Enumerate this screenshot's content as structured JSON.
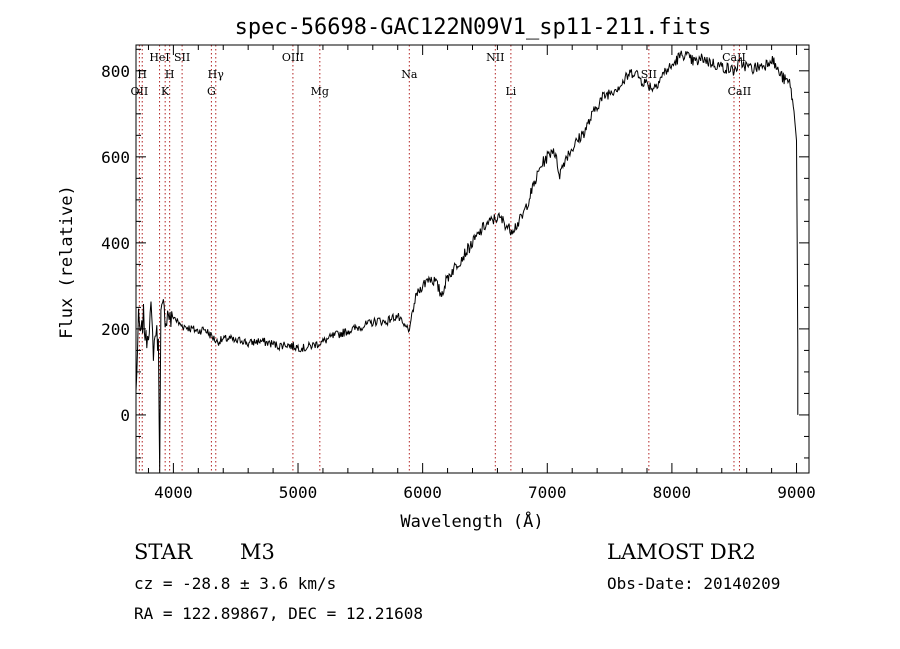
{
  "chart_data": {
    "type": "line",
    "title": "spec-56698-GAC122N09V1_sp11-211.fits",
    "xlabel": "Wavelength (Å)",
    "ylabel": "Flux (relative)",
    "xlim": [
      3700,
      9100
    ],
    "ylim": [
      -135,
      860
    ],
    "xticks": [
      4000,
      5000,
      6000,
      7000,
      8000,
      9000
    ],
    "yticks": [
      0,
      200,
      400,
      600,
      800
    ],
    "grid": false,
    "series": [
      {
        "values_x": [
          3700,
          3720,
          3740,
          3760,
          3780,
          3800,
          3820,
          3840,
          3860,
          3880,
          3890,
          3900,
          3920,
          3940,
          3960,
          3980,
          4000,
          4050,
          4100,
          4150,
          4200,
          4250,
          4300,
          4350,
          4400,
          4450,
          4500,
          4550,
          4600,
          4650,
          4700,
          4750,
          4800,
          4850,
          4900,
          4950,
          5000,
          5050,
          5100,
          5150,
          5200,
          5250,
          5300,
          5350,
          5400,
          5450,
          5500,
          5550,
          5600,
          5650,
          5700,
          5750,
          5800,
          5850,
          5900,
          5920,
          5950,
          6000,
          6050,
          6100,
          6150,
          6200,
          6250,
          6300,
          6350,
          6400,
          6450,
          6500,
          6550,
          6600,
          6650,
          6700,
          6750,
          6800,
          6850,
          6900,
          6950,
          7000,
          7050,
          7100,
          7150,
          7200,
          7250,
          7300,
          7350,
          7400,
          7450,
          7500,
          7550,
          7600,
          7650,
          7700,
          7750,
          7800,
          7850,
          7900,
          7950,
          8000,
          8050,
          8100,
          8150,
          8200,
          8250,
          8300,
          8350,
          8400,
          8450,
          8500,
          8550,
          8600,
          8650,
          8700,
          8750,
          8800,
          8850,
          8900,
          8950,
          8980,
          9000,
          9010
        ],
        "values_y": [
          50,
          220,
          180,
          230,
          170,
          200,
          240,
          150,
          200,
          160,
          -130,
          230,
          250,
          220,
          240,
          215,
          230,
          210,
          205,
          200,
          195,
          200,
          185,
          170,
          175,
          178,
          170,
          175,
          165,
          170,
          172,
          168,
          165,
          160,
          165,
          160,
          158,
          155,
          160,
          165,
          170,
          178,
          185,
          190,
          195,
          200,
          205,
          210,
          215,
          220,
          215,
          225,
          230,
          205,
          200,
          240,
          280,
          300,
          320,
          310,
          280,
          320,
          340,
          360,
          380,
          400,
          420,
          440,
          450,
          460,
          450,
          430,
          440,
          460,
          500,
          540,
          580,
          600,
          620,
          560,
          600,
          620,
          640,
          660,
          690,
          720,
          740,
          750,
          760,
          770,
          790,
          800,
          780,
          770,
          760,
          780,
          800,
          810,
          830,
          840,
          825,
          820,
          830,
          820,
          815,
          810,
          805,
          800,
          820,
          810,
          805,
          810,
          815,
          830,
          800,
          780,
          770,
          700,
          650,
          150
        ]
      }
    ],
    "line_markers": [
      {
        "x": 3727,
        "label": "OII",
        "row": "lower"
      },
      {
        "x": 3750,
        "label": "H",
        "row": "upper"
      },
      {
        "x": 3889,
        "label": "HeI",
        "row": "top"
      },
      {
        "x": 3934,
        "label": "K",
        "row": "lower"
      },
      {
        "x": 3970,
        "label": "H",
        "row": "upper"
      },
      {
        "x": 4070,
        "label": "SII",
        "row": "top"
      },
      {
        "x": 4305,
        "label": "G",
        "row": "lower"
      },
      {
        "x": 4340,
        "label": "Hγ",
        "row": "upper"
      },
      {
        "x": 4959,
        "label": "OIII",
        "row": "top"
      },
      {
        "x": 5175,
        "label": "Mg",
        "row": "lower"
      },
      {
        "x": 5893,
        "label": "Na",
        "row": "upper"
      },
      {
        "x": 6583,
        "label": "NII",
        "row": "top"
      },
      {
        "x": 6708,
        "label": "Li",
        "row": "lower"
      },
      {
        "x": 7815,
        "label": "SII",
        "row": "upper"
      },
      {
        "x": 8498,
        "label": "CaII",
        "row": "top"
      },
      {
        "x": 8542,
        "label": "CaII",
        "row": "lower"
      }
    ]
  },
  "info": {
    "object_type": "STAR",
    "subclass": "M3",
    "survey": "LAMOST DR2",
    "redshift": "cz = -28.8 ± 3.6 km/s",
    "obs_date": "Obs-Date: 20140209",
    "coords": "RA = 122.89867, DEC =  12.21608"
  },
  "colors": {
    "line": "#000000",
    "marker": "#b22222",
    "background": "#ffffff"
  }
}
